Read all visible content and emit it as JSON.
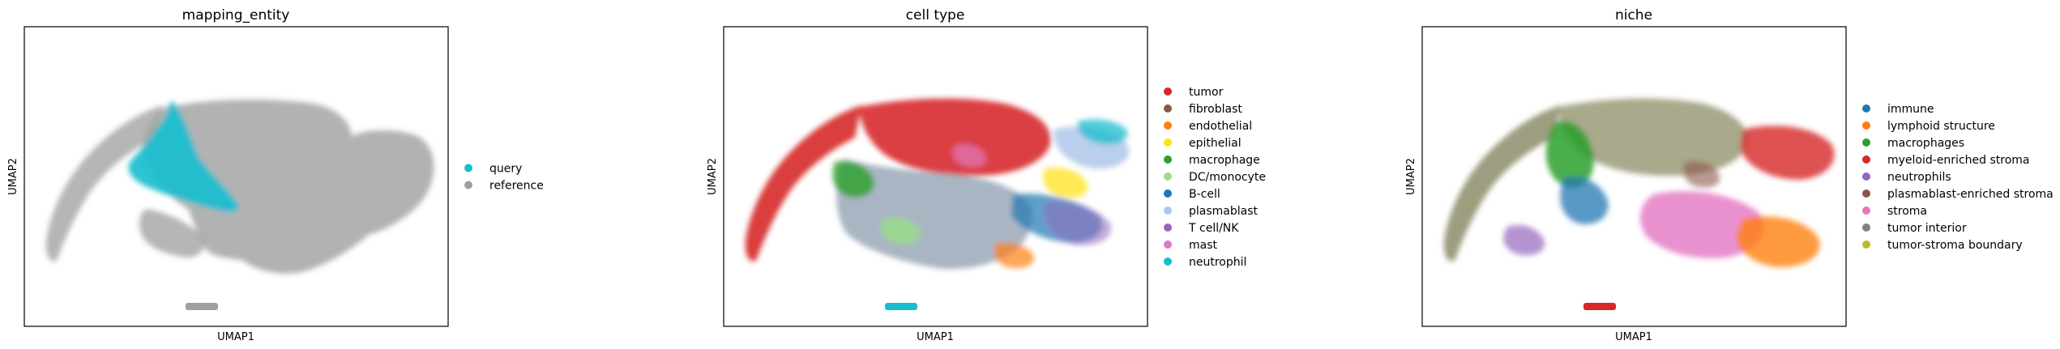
{
  "chart_data": [
    {
      "type": "scatter",
      "title": "mapping_entity",
      "xlabel": "UMAP1",
      "ylabel": "UMAP2",
      "grid": false,
      "legend_placement": "right",
      "legend": [
        {
          "label": "query",
          "color": "#17becf"
        },
        {
          "label": "reference",
          "color": "#a0a0a0"
        }
      ]
    },
    {
      "type": "scatter",
      "title": "cell type",
      "xlabel": "UMAP1",
      "ylabel": "UMAP2",
      "grid": false,
      "legend_placement": "right",
      "legend": [
        {
          "label": "tumor",
          "color": "#d62728"
        },
        {
          "label": "fibroblast",
          "color": "#8c564b"
        },
        {
          "label": "endothelial",
          "color": "#ff7f0e"
        },
        {
          "label": "epithelial",
          "color": "#ffe119"
        },
        {
          "label": "macrophage",
          "color": "#2ca02c"
        },
        {
          "label": "DC/monocyte",
          "color": "#98df8a"
        },
        {
          "label": "B-cell",
          "color": "#1f77b4"
        },
        {
          "label": "plasmablast",
          "color": "#aec7e8"
        },
        {
          "label": "T cell/NK",
          "color": "#9467bd"
        },
        {
          "label": "mast",
          "color": "#e377c2"
        },
        {
          "label": "neutrophil",
          "color": "#17becf"
        }
      ]
    },
    {
      "type": "scatter",
      "title": "niche",
      "xlabel": "UMAP1",
      "ylabel": "UMAP2",
      "grid": false,
      "legend_placement": "right",
      "legend": [
        {
          "label": "immune",
          "color": "#1f77b4"
        },
        {
          "label": "lymphoid structure",
          "color": "#ff7f0e"
        },
        {
          "label": "macrophages",
          "color": "#2ca02c"
        },
        {
          "label": "myeloid-enriched stroma",
          "color": "#d62728"
        },
        {
          "label": "neutrophils",
          "color": "#9467bd"
        },
        {
          "label": "plasmablast-enriched stroma",
          "color": "#8c564b"
        },
        {
          "label": "stroma",
          "color": "#e377c2"
        },
        {
          "label": "tumor interior",
          "color": "#7f7f7f"
        },
        {
          "label": "tumor-stroma boundary",
          "color": "#bcbd22"
        }
      ]
    }
  ]
}
